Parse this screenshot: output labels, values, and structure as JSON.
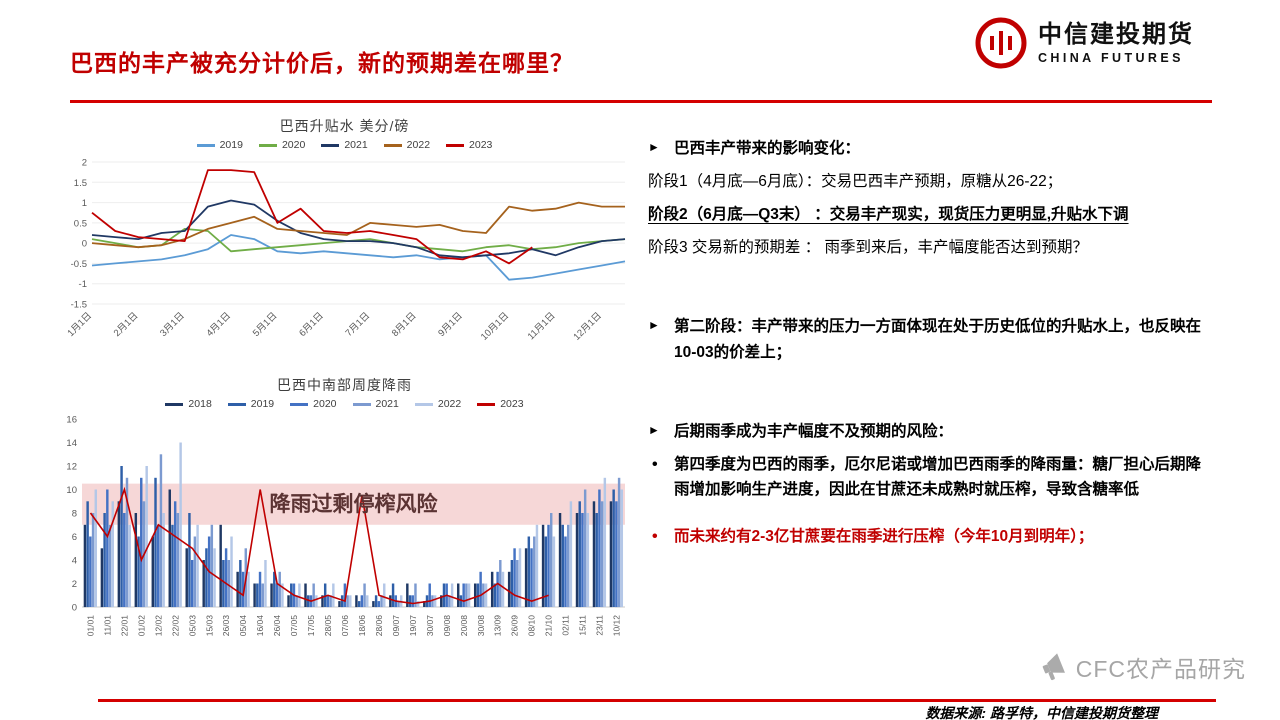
{
  "header": {
    "title": "巴西的丰产被充分计价后，新的预期差在哪里？",
    "logo_name": "中信建投期货",
    "logo_subtitle": "CHINA FUTURES"
  },
  "chart_data": [
    {
      "type": "line",
      "title": "巴西升贴水 美分/磅",
      "xlabel": "",
      "ylabel": "",
      "ylim": [
        -1.5,
        2
      ],
      "yticks": [
        2,
        1.5,
        1,
        0.5,
        0,
        -0.5,
        -1,
        -1.5
      ],
      "x_tick_labels": [
        "1月1日",
        "2月1日",
        "3月1日",
        "4月1日",
        "5月1日",
        "6月1日",
        "7月1日",
        "8月1日",
        "9月1日",
        "10月1日",
        "11月1日",
        "12月1日"
      ],
      "x_tick_positions": [
        0,
        2,
        4,
        6,
        8,
        10,
        12,
        14,
        16,
        18,
        20,
        22
      ],
      "legend_position": "top",
      "grid": false,
      "series": [
        {
          "name": "2019",
          "color": "#5B9BD5",
          "values": [
            -0.55,
            -0.5,
            -0.45,
            -0.4,
            -0.3,
            -0.15,
            0.2,
            0.1,
            -0.2,
            -0.25,
            -0.2,
            -0.25,
            -0.3,
            -0.35,
            -0.3,
            -0.4,
            -0.35,
            -0.3,
            -0.9,
            -0.85,
            -0.75,
            -0.65,
            -0.55,
            -0.45
          ]
        },
        {
          "name": "2020",
          "color": "#70AD47",
          "values": [
            0.1,
            0,
            -0.1,
            -0.05,
            0.35,
            0.3,
            -0.2,
            -0.15,
            -0.1,
            -0.05,
            0,
            0.05,
            0.1,
            0,
            -0.1,
            -0.15,
            -0.2,
            -0.1,
            -0.05,
            -0.15,
            -0.1,
            0,
            0.05,
            0.1
          ]
        },
        {
          "name": "2021",
          "color": "#203864",
          "values": [
            0.2,
            0.15,
            0.1,
            0.25,
            0.3,
            0.9,
            1.05,
            0.95,
            0.55,
            0.25,
            0.1,
            0.05,
            0.05,
            0,
            -0.1,
            -0.3,
            -0.35,
            -0.3,
            -0.25,
            -0.15,
            -0.3,
            -0.1,
            0.05,
            0.1
          ]
        },
        {
          "name": "2022",
          "color": "#A5621D",
          "values": [
            0,
            -0.05,
            -0.1,
            -0.05,
            0.1,
            0.35,
            0.5,
            0.65,
            0.35,
            0.3,
            0.25,
            0.2,
            0.5,
            0.45,
            0.4,
            0.45,
            0.3,
            0.25,
            0.9,
            0.8,
            0.85,
            1.0,
            0.9,
            0.9
          ]
        },
        {
          "name": "2023",
          "color": "#C00000",
          "values": [
            0.75,
            0.3,
            0.15,
            0.1,
            0.05,
            1.8,
            1.8,
            1.75,
            0.5,
            0.85,
            0.3,
            0.25,
            0.3,
            0.2,
            0.1,
            -0.35,
            -0.4,
            -0.2,
            -0.5,
            -0.1,
            null,
            null,
            null,
            null
          ]
        }
      ]
    },
    {
      "type": "bar",
      "title": "巴西中南部周度降雨",
      "xlabel": "",
      "ylabel": "",
      "ylim": [
        0,
        16
      ],
      "yticks": [
        0,
        2,
        4,
        6,
        8,
        10,
        12,
        14,
        16
      ],
      "legend_position": "top",
      "grid": false,
      "x_tick_labels": [
        "01/01",
        "11/01",
        "22/01",
        "01/02",
        "12/02",
        "22/02",
        "05/03",
        "15/03",
        "26/03",
        "05/04",
        "16/04",
        "26/04",
        "07/05",
        "17/05",
        "28/05",
        "07/06",
        "18/06",
        "28/06",
        "09/07",
        "19/07",
        "30/07",
        "09/08",
        "20/08",
        "30/08",
        "13/09",
        "26/09",
        "08/10",
        "21/10",
        "02/11",
        "15/11",
        "23/11",
        "10/12"
      ],
      "band": {
        "yrange": [
          7,
          10.5
        ],
        "color": "#F0BDBD",
        "label": "降雨过剩停榨风险",
        "label_color": "#5B3333"
      },
      "series": [
        {
          "name": "2018",
          "style": "bar",
          "color": "#1F3864",
          "values": [
            7,
            5,
            9,
            8,
            6,
            10,
            5,
            4,
            7,
            3,
            2,
            2,
            1,
            2,
            1,
            0.5,
            1,
            0.5,
            1,
            2,
            0.5,
            1,
            2,
            2,
            3,
            3,
            5,
            7,
            8,
            8,
            9,
            9
          ]
        },
        {
          "name": "2019",
          "style": "bar",
          "color": "#2E5FA8",
          "values": [
            9,
            8,
            12,
            6,
            11,
            7,
            8,
            5,
            4,
            4,
            2,
            3,
            2,
            1,
            2,
            1,
            0.5,
            1,
            2,
            1,
            1,
            2,
            1,
            2,
            2,
            4,
            6,
            6,
            7,
            9,
            8,
            10
          ]
        },
        {
          "name": "2020",
          "style": "bar",
          "color": "#4472C4",
          "values": [
            6,
            10,
            8,
            11,
            7,
            9,
            4,
            6,
            5,
            3,
            3,
            2,
            2,
            1,
            1,
            2,
            1,
            0.5,
            1,
            1,
            2,
            2,
            2,
            3,
            3,
            5,
            5,
            7,
            6,
            8,
            10,
            9
          ]
        },
        {
          "name": "2021",
          "style": "bar",
          "color": "#7C9AD0",
          "values": [
            8,
            7,
            11,
            9,
            13,
            8,
            6,
            7,
            4,
            5,
            2,
            3,
            1,
            2,
            1,
            1,
            2,
            1,
            0.5,
            2,
            1,
            1,
            2,
            2,
            4,
            4,
            6,
            8,
            7,
            10,
            9,
            11
          ]
        },
        {
          "name": "2022",
          "style": "bar",
          "color": "#B4C7E7",
          "values": [
            10,
            9,
            7,
            12,
            8,
            14,
            7,
            5,
            6,
            3,
            4,
            2,
            2,
            1,
            2,
            1,
            1,
            2,
            1,
            0.5,
            1,
            2,
            2,
            2,
            3,
            5,
            7,
            6,
            9,
            8,
            11,
            10
          ]
        },
        {
          "name": "2023",
          "style": "line",
          "color": "#C00000",
          "values": [
            8,
            6,
            10,
            4,
            7,
            6,
            5,
            3,
            2,
            1,
            10,
            2,
            1,
            0.5,
            1,
            0.5,
            9.5,
            1,
            0.5,
            0.3,
            0.5,
            1,
            0.5,
            1,
            2,
            1,
            0.5,
            1,
            null,
            null,
            null,
            null
          ]
        }
      ]
    }
  ],
  "right_panel": {
    "sections": [
      {
        "items": [
          {
            "kind": "arrow",
            "bold": true,
            "text": "巴西丰产带来的影响变化："
          },
          {
            "kind": "plain",
            "text": "阶段1（4月底—6月底）：交易巴西丰产预期，原糖从26-22；"
          },
          {
            "kind": "plain",
            "bold": true,
            "underline": true,
            "text": "阶段2（6月底—Q3末） ：交易丰产现实，现货压力更明显,升贴水下调"
          },
          {
            "kind": "plain",
            "text": "阶段3 交易新的预期差 ： 雨季到来后，丰产幅度能否达到预期？"
          }
        ]
      },
      {
        "items": [
          {
            "kind": "arrow",
            "bold": true,
            "text": "第二阶段：丰产带来的压力一方面体现在处于历史低位的升贴水上，也反映在10-03的价差上；"
          }
        ]
      },
      {
        "items": [
          {
            "kind": "arrow",
            "bold": true,
            "text": "后期雨季成为丰产幅度不及预期的风险："
          },
          {
            "kind": "bullet",
            "bold": true,
            "text": "第四季度为巴西的雨季，厄尔尼诺或增加巴西雨季的降雨量：糖厂担心后期降雨增加影响生产进度，因此在甘蔗还未成熟时就压榨，导致含糖率低"
          },
          {
            "kind": "bullet",
            "bold": true,
            "red": true,
            "gap": true,
            "text": "而未来约有2-3亿甘蔗要在雨季进行压榨（今年10月到明年）；"
          }
        ]
      }
    ]
  },
  "footer": {
    "source": "数据来源: 路孚特，中信建投期货整理",
    "watermark": "CFC农产品研究"
  },
  "colors": {
    "accent_red": "#C00000",
    "rule_red": "#D40000",
    "band_pink": "#F0BDBD"
  }
}
